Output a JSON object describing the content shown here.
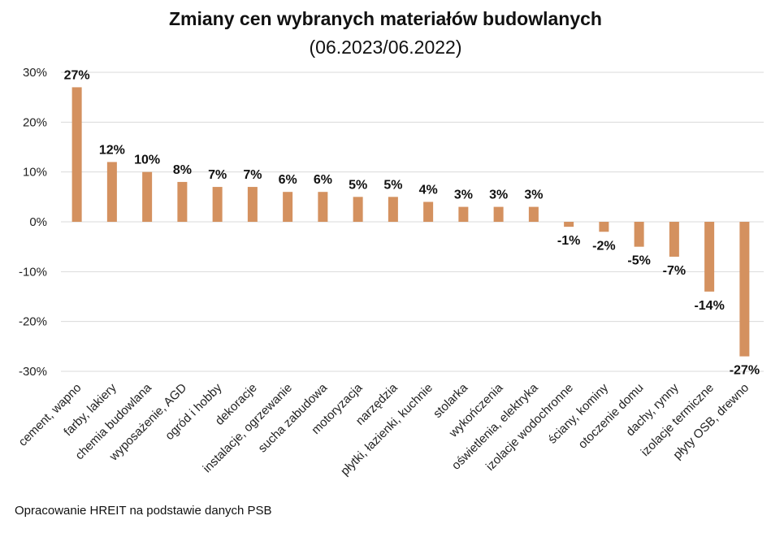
{
  "chart_data": {
    "type": "bar",
    "title": "Zmiany cen wybranych materiałów budowlanych",
    "subtitle": "(06.2023/06.2022)",
    "xlabel": "",
    "ylabel": "",
    "ylim": [
      -30,
      30
    ],
    "yticks": [
      30,
      20,
      10,
      0,
      -10,
      -20,
      -30
    ],
    "ytick_labels": [
      "30%",
      "20%",
      "10%",
      "0%",
      "-10%",
      "-20%",
      "-30%"
    ],
    "grid": true,
    "legend": "none",
    "bar_color": "#D4915F",
    "categories": [
      "cement, wapno",
      "farby, lakiery",
      "chemia budowlana",
      "wyposażenie, AGD",
      "ogród i hobby",
      "dekoracje",
      "instalacje, ogrzewanie",
      "sucha zabudowa",
      "motoryzacja",
      "narzędzia",
      "płytki, łazienki, kuchnie",
      "stolarka",
      "wykończenia",
      "oświetlenia, elektryka",
      "izolacje wodochronne",
      "ściany, kominy",
      "otoczenie domu",
      "dachy, rynny",
      "izolacje termiczne",
      "płyty OSB, drewno"
    ],
    "values": [
      27,
      12,
      10,
      8,
      7,
      7,
      6,
      6,
      5,
      5,
      4,
      3,
      3,
      3,
      -1,
      -2,
      -5,
      -7,
      -14,
      -27
    ],
    "data_labels": [
      "27%",
      "12%",
      "10%",
      "8%",
      "7%",
      "7%",
      "6%",
      "6%",
      "5%",
      "5%",
      "4%",
      "3%",
      "3%",
      "3%",
      "-1%",
      "-2%",
      "-5%",
      "-7%",
      "-14%",
      "-27%"
    ]
  },
  "source_note": "Opracowanie HREIT na podstawie danych PSB"
}
